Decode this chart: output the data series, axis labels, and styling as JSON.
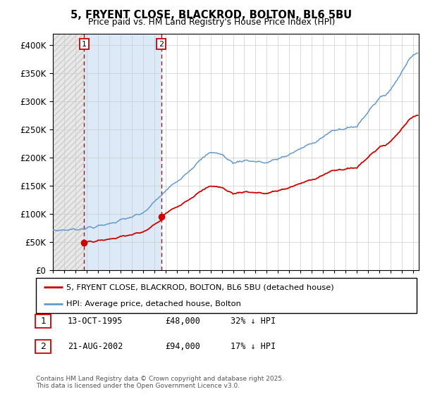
{
  "title": "5, FRYENT CLOSE, BLACKROD, BOLTON, BL6 5BU",
  "subtitle": "Price paid vs. HM Land Registry's House Price Index (HPI)",
  "legend_line1": "5, FRYENT CLOSE, BLACKROD, BOLTON, BL6 5BU (detached house)",
  "legend_line2": "HPI: Average price, detached house, Bolton",
  "footnote": "Contains HM Land Registry data © Crown copyright and database right 2025.\nThis data is licensed under the Open Government Licence v3.0.",
  "table": [
    {
      "num": "1",
      "date": "13-OCT-1995",
      "price": "£48,000",
      "hpi": "32% ↓ HPI"
    },
    {
      "num": "2",
      "date": "21-AUG-2002",
      "price": "£94,000",
      "hpi": "17% ↓ HPI"
    }
  ],
  "sale1_year": 1995.78,
  "sale1_price": 48000,
  "sale2_year": 2002.63,
  "sale2_price": 94000,
  "property_color": "#cc0000",
  "hpi_color": "#6699cc",
  "hatch_color": "#bbbbbb",
  "shade_color": "#dce9f7",
  "background_color": "#ffffff",
  "grid_color": "#cccccc",
  "ylim": [
    0,
    420000
  ],
  "xlim_start": 1993.0,
  "xlim_end": 2025.5,
  "yticks": [
    0,
    50000,
    100000,
    150000,
    200000,
    250000,
    300000,
    350000,
    400000
  ],
  "xtick_years": [
    1993,
    1994,
    1995,
    1996,
    1997,
    1998,
    1999,
    2000,
    2001,
    2002,
    2003,
    2004,
    2005,
    2006,
    2007,
    2008,
    2009,
    2010,
    2011,
    2012,
    2013,
    2014,
    2015,
    2016,
    2017,
    2018,
    2019,
    2020,
    2021,
    2022,
    2023,
    2024,
    2025
  ]
}
